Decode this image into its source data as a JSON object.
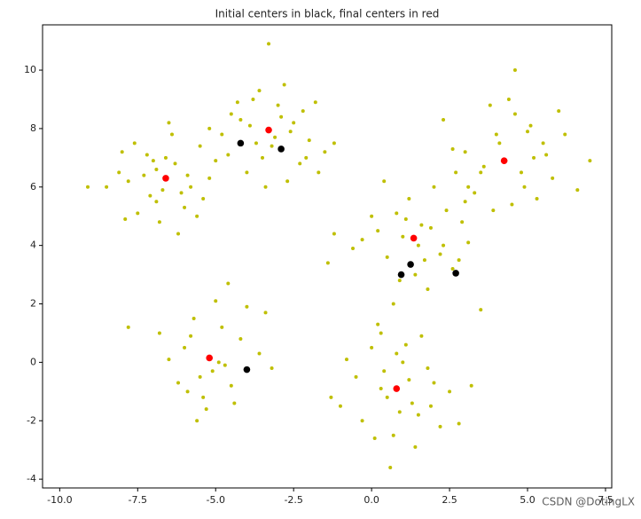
{
  "chart_data": {
    "type": "scatter",
    "title": "Initial centers in black, final centers in red",
    "xlim": [
      -10.55,
      7.7
    ],
    "ylim": [
      -4.3,
      11.55
    ],
    "xticks": [
      {
        "value": -10,
        "label": "-10.0"
      },
      -7.5,
      {
        "value": -5,
        "label": "-5.0"
      },
      -2.5,
      {
        "value": 0,
        "label": "0.0"
      },
      2.5,
      {
        "value": 5,
        "label": "5.0"
      },
      7.5
    ],
    "yticks": [
      -4,
      -2,
      0,
      2,
      4,
      6,
      8,
      10
    ],
    "series": [
      {
        "color": "#bfbf00",
        "x": [
          -7.8,
          -7.2,
          -6.9,
          -6.3,
          -5.8,
          -5.5,
          -7.5,
          -8.1,
          -6.0,
          -6.8,
          -7.0,
          -5.9,
          -6.4,
          -7.6,
          -8.5,
          -5.2,
          -6.2,
          -6.7,
          -7.3,
          -5.6,
          -8.0,
          -6.5,
          -7.1,
          -5.0,
          -6.9,
          -9.1,
          -6.1,
          -7.9,
          -5.4,
          -6.6,
          -4.5,
          -3.8,
          -3.0,
          -2.5,
          -2.0,
          -3.5,
          -4.0,
          -2.8,
          -1.8,
          -3.2,
          -4.8,
          -2.3,
          -3.9,
          -2.7,
          -3.6,
          -1.5,
          -4.3,
          -3.1,
          -2.2,
          -4.6,
          -3.4,
          -2.6,
          -1.2,
          -3.7,
          -4.2,
          -2.9,
          -3.3,
          -2.1,
          -5.2,
          -1.7,
          -6.0,
          -5.5,
          -4.8,
          -4.2,
          -5.9,
          -5.0,
          -4.5,
          -6.5,
          -5.3,
          -3.6,
          -5.7,
          -4.9,
          -6.8,
          -4.4,
          -5.1,
          -3.4,
          -6.2,
          -5.8,
          -4.6,
          -5.4,
          -7.8,
          -4.0,
          -5.6,
          -4.7,
          -3.2,
          0.2,
          0.8,
          1.5,
          2.2,
          2.9,
          0.5,
          1.2,
          1.9,
          2.6,
          -0.3,
          0.9,
          1.7,
          2.4,
          3.1,
          0,
          1.0,
          2.0,
          -1.2,
          1.4,
          2.8,
          0.4,
          1.8,
          3.0,
          -0.6,
          1.1,
          2.3,
          0.7,
          1.6,
          -1.4,
          3.5,
          3.0,
          3.5,
          4.0,
          4.6,
          5.2,
          5.8,
          3.3,
          4.3,
          4.9,
          5.5,
          6.2,
          2.6,
          3.8,
          4.5,
          5.1,
          6.6,
          3.1,
          4.1,
          4.8,
          5.6,
          2.3,
          3.6,
          4.4,
          5.3,
          7.0,
          4.6,
          3.9,
          5.0,
          6.0,
          2.7,
          -0.5,
          0,
          0.5,
          1.0,
          1.5,
          2.0,
          -0.3,
          0.3,
          0.8,
          1.3,
          1.8,
          2.5,
          -1.0,
          0.2,
          0.7,
          1.2,
          1.6,
          2.2,
          -0.8,
          0.4,
          0.9,
          1.4,
          3.2,
          -1.3,
          0.6,
          1.1,
          1.9,
          0.1,
          2.8,
          0.3
        ],
        "values": [
          6.2,
          7.1,
          5.5,
          6.8,
          6.0,
          7.4,
          5.1,
          6.5,
          5.3,
          4.8,
          6.9,
          6.4,
          7.8,
          7.5,
          6.0,
          6.3,
          4.4,
          5.9,
          6.4,
          5.0,
          7.2,
          8.2,
          5.7,
          6.9,
          6.6,
          6.0,
          5.8,
          4.9,
          5.6,
          7.0,
          8.5,
          9.0,
          8.8,
          8.2,
          7.6,
          7.0,
          6.5,
          9.5,
          8.9,
          7.4,
          7.8,
          6.8,
          8.1,
          6.2,
          9.3,
          7.2,
          8.9,
          7.7,
          8.6,
          7.1,
          6.0,
          7.9,
          7.5,
          7.5,
          8.3,
          8.4,
          10.9,
          7.0,
          8.0,
          6.5,
          0.5,
          -0.5,
          1.2,
          0.8,
          -1.0,
          2.1,
          -0.8,
          0.1,
          -1.6,
          0.3,
          1.5,
          0,
          1.0,
          -1.4,
          -0.3,
          1.7,
          -0.7,
          0.9,
          2.7,
          -1.2,
          1.2,
          1.9,
          -2.0,
          -0.1,
          -0.2,
          4.5,
          5.1,
          4.0,
          3.7,
          4.8,
          3.6,
          5.6,
          4.6,
          3.2,
          4.2,
          2.8,
          3.5,
          5.2,
          4.1,
          5.0,
          4.3,
          6.0,
          4.4,
          3.0,
          3.5,
          6.2,
          2.5,
          5.5,
          3.9,
          4.9,
          4.0,
          2.0,
          4.7,
          3.4,
          1.8,
          7.2,
          6.5,
          7.8,
          8.5,
          7.0,
          6.3,
          5.8,
          6.9,
          6.0,
          7.5,
          7.8,
          7.3,
          8.8,
          5.4,
          8.1,
          5.9,
          6.0,
          7.5,
          6.5,
          7.1,
          8.3,
          6.7,
          9.0,
          5.6,
          6.9,
          10.0,
          5.2,
          7.9,
          8.6,
          6.5,
          -0.5,
          0.5,
          -1.2,
          0,
          -1.8,
          -0.7,
          -2.0,
          -0.9,
          0.3,
          -1.4,
          -0.2,
          -1.0,
          -1.5,
          1.3,
          -2.5,
          -0.6,
          0.9,
          -2.2,
          0.1,
          -0.3,
          -1.7,
          -2.9,
          -0.8,
          -1.2,
          -3.6,
          0.6,
          -1.5,
          -2.6,
          -2.1,
          1.0
        ]
      },
      {
        "color": "#000000",
        "x": [
          -4.2,
          -2.9,
          -4.0,
          1.25,
          0.95,
          2.7
        ],
        "values": [
          7.5,
          7.3,
          -0.25,
          3.35,
          3.0,
          3.05
        ]
      },
      {
        "color": "#ff0000",
        "x": [
          -3.3,
          -6.6,
          -5.2,
          1.35,
          4.25,
          0.8
        ],
        "values": [
          7.95,
          6.3,
          0.15,
          4.25,
          6.9,
          -0.9
        ]
      }
    ],
    "watermark": "CSDN @DotingLX"
  }
}
